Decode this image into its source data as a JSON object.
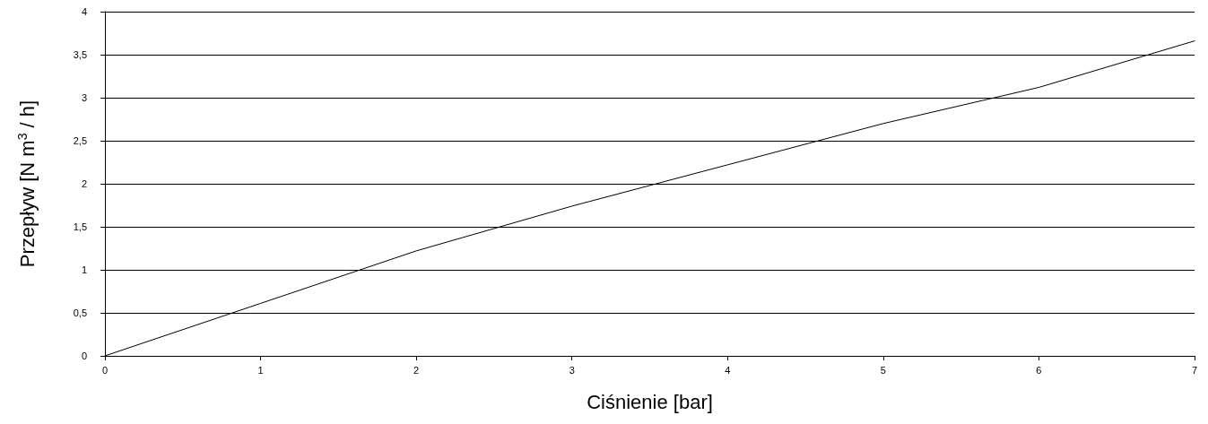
{
  "chart_data": {
    "type": "line",
    "xlabel": "Ciśnienie [bar]",
    "ylabel": "Przepływ [N m$^{3}$ / h]",
    "x": [
      0,
      1,
      2,
      3,
      4,
      5,
      6,
      7
    ],
    "series": [
      {
        "color": "#000000",
        "values": [
          0,
          0.61,
          1.22,
          1.74,
          2.22,
          2.7,
          3.12,
          3.66
        ]
      }
    ],
    "xlim": [
      0,
      7
    ],
    "xticks": [
      0,
      1,
      2,
      3,
      4,
      5,
      6,
      7
    ],
    "ylim": [
      0,
      4
    ],
    "yticks": [
      0,
      {
        "value": 0.5,
        "label": "0,5"
      },
      1,
      {
        "value": 1.5,
        "label": "1,5"
      },
      2,
      {
        "value": 2.5,
        "label": "2,5"
      },
      3,
      {
        "value": 3.5,
        "label": "3,5"
      },
      4
    ],
    "grid": "y",
    "marker": "none",
    "line_style": "solid"
  }
}
